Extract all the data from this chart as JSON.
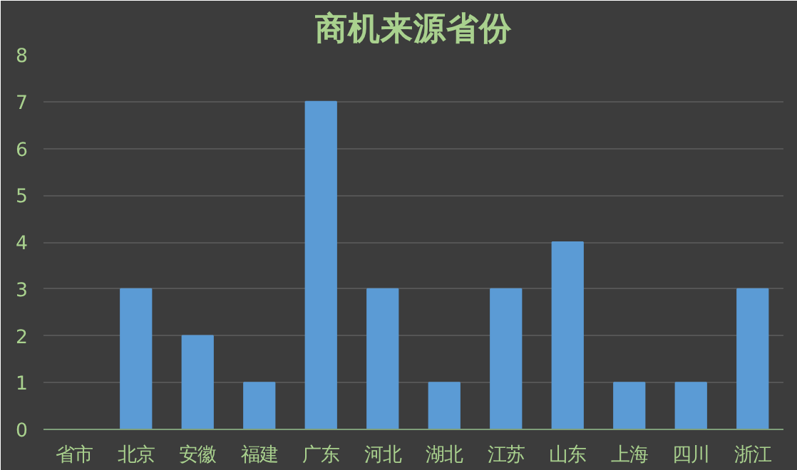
{
  "chart_data": {
    "type": "bar",
    "title": "商机来源省份",
    "categories": [
      "省市",
      "北京",
      "安徽",
      "福建",
      "广东",
      "河北",
      "湖北",
      "江苏",
      "山东",
      "上海",
      "四川",
      "浙江"
    ],
    "values": [
      0,
      3,
      2,
      1,
      7,
      3,
      1,
      3,
      4,
      1,
      1,
      3
    ],
    "color": "#5b9bd5",
    "ylim": [
      0,
      8
    ],
    "yticks": [
      0,
      1,
      2,
      3,
      4,
      5,
      6,
      7,
      8
    ],
    "grid": "y"
  }
}
